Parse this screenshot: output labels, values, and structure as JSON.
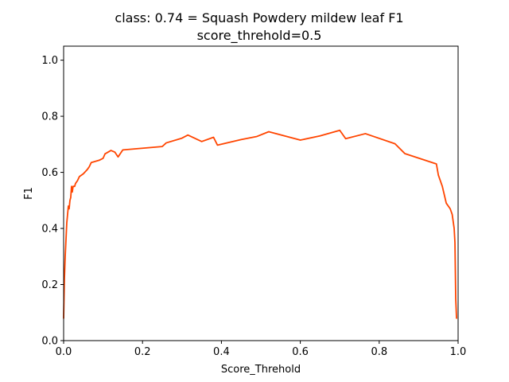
{
  "chart_data": {
    "type": "line",
    "title_line1": "class: 0.74 = Squash Powdery mildew leaf F1",
    "title_line2": "score_threhold=0.5",
    "xlabel": "Score_Threhold",
    "ylabel": "F1",
    "xlim": [
      0,
      1.0
    ],
    "ylim": [
      0,
      1.05
    ],
    "xticks": [
      "0.0",
      "0.2",
      "0.4",
      "0.6",
      "0.8",
      "1.0"
    ],
    "yticks": [
      "0.0",
      "0.2",
      "0.4",
      "0.6",
      "0.8",
      "1.0"
    ],
    "grid": false,
    "series": [
      {
        "color": "#ff4500",
        "x": [
          0.0,
          0.002,
          0.004,
          0.006,
          0.008,
          0.01,
          0.012,
          0.014,
          0.016,
          0.018,
          0.02,
          0.022,
          0.024,
          0.026,
          0.028,
          0.03,
          0.035,
          0.04,
          0.05,
          0.06,
          0.065,
          0.07,
          0.09,
          0.1,
          0.105,
          0.12,
          0.13,
          0.138,
          0.15,
          0.25,
          0.26,
          0.3,
          0.315,
          0.35,
          0.38,
          0.39,
          0.45,
          0.49,
          0.52,
          0.56,
          0.6,
          0.65,
          0.7,
          0.715,
          0.765,
          0.84,
          0.865,
          0.945,
          0.95,
          0.96,
          0.965,
          0.97,
          0.98,
          0.985,
          0.99,
          0.992,
          0.994,
          0.996
        ],
        "y": [
          0.08,
          0.22,
          0.3,
          0.36,
          0.42,
          0.45,
          0.48,
          0.47,
          0.5,
          0.51,
          0.55,
          0.53,
          0.55,
          0.55,
          0.55,
          0.56,
          0.57,
          0.585,
          0.595,
          0.61,
          0.62,
          0.635,
          0.643,
          0.65,
          0.666,
          0.678,
          0.672,
          0.655,
          0.68,
          0.692,
          0.705,
          0.722,
          0.733,
          0.71,
          0.725,
          0.697,
          0.717,
          0.728,
          0.745,
          0.73,
          0.715,
          0.73,
          0.75,
          0.72,
          0.738,
          0.702,
          0.667,
          0.63,
          0.59,
          0.55,
          0.52,
          0.49,
          0.47,
          0.45,
          0.4,
          0.35,
          0.15,
          0.08
        ]
      }
    ]
  }
}
